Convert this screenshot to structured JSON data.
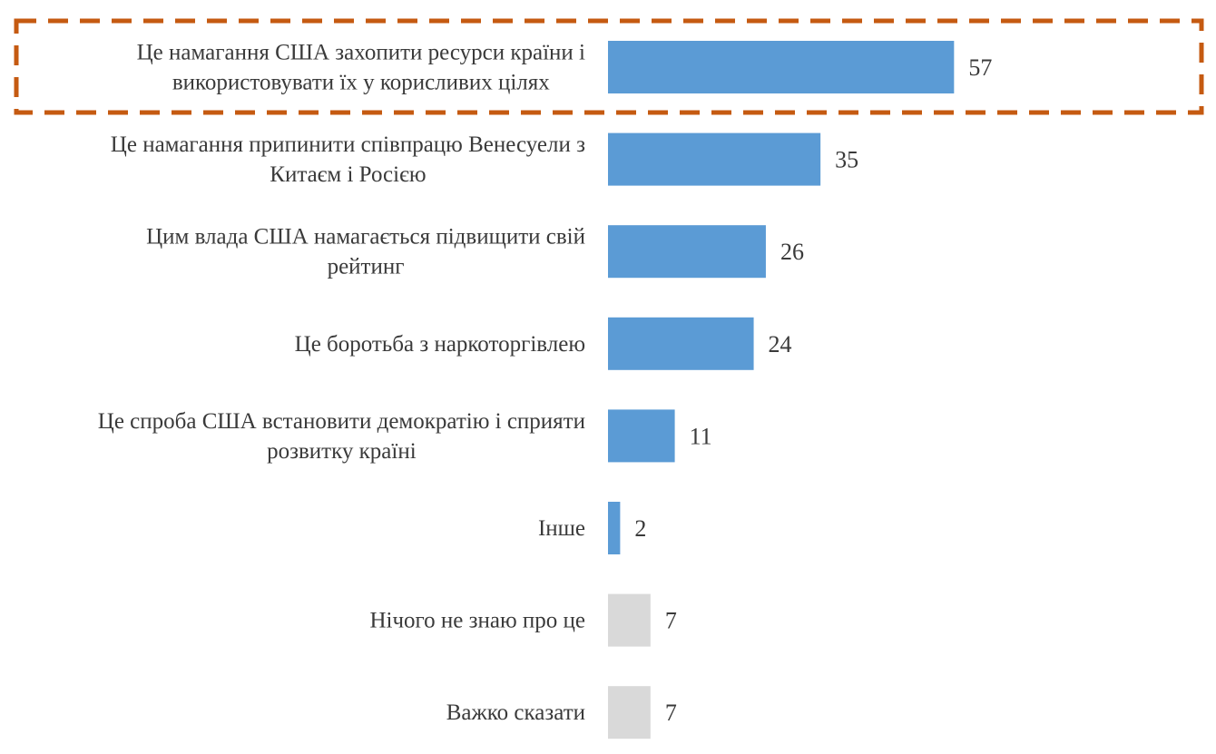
{
  "chart_data": {
    "type": "bar",
    "orientation": "horizontal",
    "categories": [
      [
        "Це намагання США захопити ресурси країни і",
        "використовувати їх у корисливих цілях"
      ],
      [
        "Це намагання припинити співпрацю Венесуели з",
        "Китаєм і Росією"
      ],
      [
        "Цим влада США намагається підвищити свій",
        "рейтинг"
      ],
      [
        "Це боротьба з наркоторгівлею"
      ],
      [
        "Це спроба США встановити демократію і сприяти",
        "розвитку країні"
      ],
      [
        "Інше"
      ],
      [
        "Нічого не знаю про це"
      ],
      [
        "Важко сказати"
      ]
    ],
    "values": [
      57,
      35,
      26,
      24,
      11,
      2,
      7,
      7
    ],
    "bar_colors": [
      "#5b9bd5",
      "#5b9bd5",
      "#5b9bd5",
      "#5b9bd5",
      "#5b9bd5",
      "#5b9bd5",
      "#d9d9d9",
      "#d9d9d9"
    ],
    "value_label_colors": [
      "#3a3a3a",
      "#3a3a3a",
      "#3a3a3a",
      "#3a3a3a",
      "#3a3a3a",
      "#3a3a3a",
      "#7f7f7f",
      "#7f7f7f"
    ],
    "highlighted_category_index": 0,
    "highlight_color": "#c55a11",
    "title": "",
    "xlabel": "",
    "ylabel": "",
    "xlim": [
      0,
      100
    ],
    "grid": false,
    "legend": "none"
  }
}
